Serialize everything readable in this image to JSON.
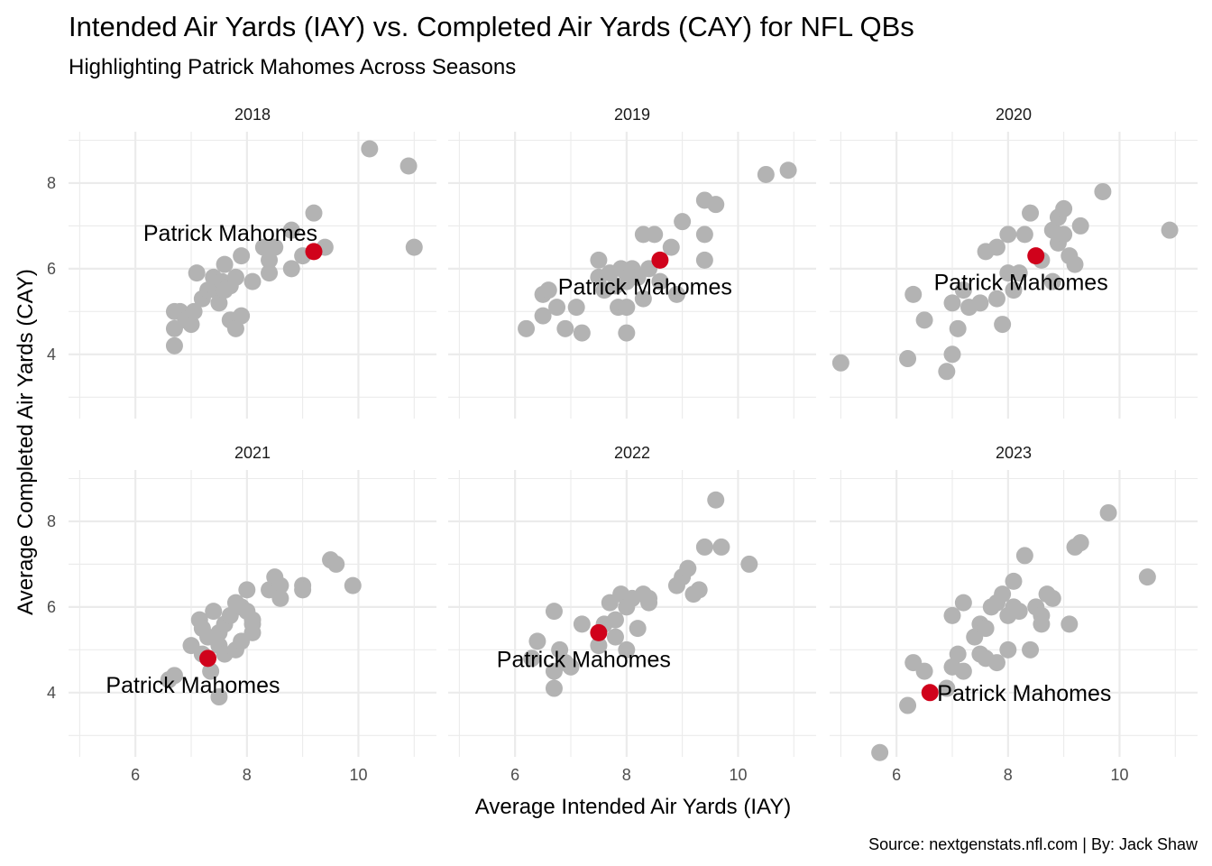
{
  "chart_data": {
    "type": "scatter",
    "title": "Intended Air Yards (IAY) vs. Completed Air Yards (CAY) for NFL QBs",
    "subtitle": "Highlighting Patrick Mahomes Across Seasons",
    "xlabel": "Average Intended Air Yards (IAY)",
    "ylabel": "Average Completed Air Yards (CAY)",
    "caption": "Source: nextgenstats.nfl.com | By: Jack Shaw",
    "xlim": [
      4.8,
      11.4
    ],
    "ylim": [
      2.5,
      9.2
    ],
    "x_ticks": [
      6,
      8,
      10
    ],
    "y_ticks": [
      4,
      6,
      8
    ],
    "grid": true,
    "facet_by": "season",
    "colors": {
      "others": "#b3b3b3",
      "highlight": "#d0021b"
    },
    "highlight_label": "Patrick Mahomes",
    "panels": [
      {
        "season": "2018",
        "highlight": {
          "x": 9.2,
          "y": 6.4
        },
        "label_position": "above-left",
        "points": [
          [
            6.7,
            5.0
          ],
          [
            6.7,
            4.6
          ],
          [
            6.7,
            4.2
          ],
          [
            6.8,
            5.0
          ],
          [
            6.9,
            4.8
          ],
          [
            7.0,
            4.7
          ],
          [
            7.05,
            5.0
          ],
          [
            7.1,
            5.9
          ],
          [
            7.2,
            5.3
          ],
          [
            7.3,
            5.5
          ],
          [
            7.4,
            5.8
          ],
          [
            7.45,
            5.5
          ],
          [
            7.5,
            5.2
          ],
          [
            7.55,
            5.7
          ],
          [
            7.6,
            6.1
          ],
          [
            7.6,
            5.5
          ],
          [
            7.7,
            4.8
          ],
          [
            7.7,
            5.6
          ],
          [
            7.8,
            4.6
          ],
          [
            7.8,
            5.8
          ],
          [
            7.9,
            4.9
          ],
          [
            7.9,
            6.3
          ],
          [
            8.1,
            5.7
          ],
          [
            8.3,
            6.5
          ],
          [
            8.4,
            5.9
          ],
          [
            8.4,
            6.2
          ],
          [
            8.5,
            6.5
          ],
          [
            8.8,
            6.0
          ],
          [
            8.8,
            6.9
          ],
          [
            9.0,
            6.3
          ],
          [
            9.2,
            7.3
          ],
          [
            9.4,
            6.5
          ],
          [
            10.2,
            8.8
          ],
          [
            10.9,
            8.4
          ],
          [
            11.0,
            6.5
          ]
        ]
      },
      {
        "season": "2019",
        "highlight": {
          "x": 8.6,
          "y": 6.2
        },
        "label_position": "below-left",
        "points": [
          [
            6.2,
            4.6
          ],
          [
            6.5,
            4.9
          ],
          [
            6.5,
            5.4
          ],
          [
            6.6,
            5.5
          ],
          [
            6.75,
            5.1
          ],
          [
            6.9,
            4.6
          ],
          [
            7.1,
            5.1
          ],
          [
            7.2,
            4.5
          ],
          [
            7.5,
            6.2
          ],
          [
            7.5,
            5.8
          ],
          [
            7.6,
            5.5
          ],
          [
            7.7,
            5.9
          ],
          [
            7.8,
            5.6
          ],
          [
            7.85,
            5.1
          ],
          [
            7.9,
            6.0
          ],
          [
            8.0,
            5.7
          ],
          [
            8.0,
            4.5
          ],
          [
            8.0,
            5.1
          ],
          [
            8.1,
            6.0
          ],
          [
            8.2,
            5.8
          ],
          [
            8.3,
            5.3
          ],
          [
            8.3,
            6.8
          ],
          [
            8.4,
            6.0
          ],
          [
            8.5,
            6.8
          ],
          [
            8.6,
            5.7
          ],
          [
            8.8,
            6.5
          ],
          [
            8.9,
            5.4
          ],
          [
            9.0,
            7.1
          ],
          [
            9.4,
            7.6
          ],
          [
            9.4,
            6.8
          ],
          [
            9.4,
            6.2
          ],
          [
            9.6,
            7.5
          ],
          [
            10.5,
            8.2
          ],
          [
            10.9,
            8.3
          ]
        ]
      },
      {
        "season": "2020",
        "highlight": {
          "x": 8.5,
          "y": 6.3
        },
        "label_position": "below-left",
        "points": [
          [
            5.0,
            3.8
          ],
          [
            6.2,
            3.9
          ],
          [
            6.3,
            5.4
          ],
          [
            6.5,
            4.8
          ],
          [
            6.9,
            3.6
          ],
          [
            7.0,
            4.0
          ],
          [
            7.0,
            5.2
          ],
          [
            7.1,
            4.6
          ],
          [
            7.2,
            5.5
          ],
          [
            7.3,
            5.1
          ],
          [
            7.5,
            5.2
          ],
          [
            7.6,
            6.4
          ],
          [
            7.8,
            6.5
          ],
          [
            7.8,
            5.3
          ],
          [
            7.9,
            4.7
          ],
          [
            8.0,
            5.9
          ],
          [
            8.0,
            6.8
          ],
          [
            8.1,
            5.5
          ],
          [
            8.2,
            5.9
          ],
          [
            8.3,
            6.8
          ],
          [
            8.4,
            7.3
          ],
          [
            8.6,
            6.2
          ],
          [
            8.8,
            6.9
          ],
          [
            8.8,
            5.7
          ],
          [
            8.9,
            7.2
          ],
          [
            8.9,
            6.6
          ],
          [
            9.0,
            7.4
          ],
          [
            9.0,
            6.8
          ],
          [
            9.1,
            6.3
          ],
          [
            9.2,
            6.1
          ],
          [
            9.3,
            7.0
          ],
          [
            9.7,
            7.8
          ],
          [
            10.9,
            6.9
          ]
        ]
      },
      {
        "season": "2021",
        "highlight": {
          "x": 7.3,
          "y": 4.8
        },
        "label_position": "below-left",
        "points": [
          [
            6.6,
            4.3
          ],
          [
            6.7,
            4.4
          ],
          [
            7.0,
            5.1
          ],
          [
            7.15,
            5.7
          ],
          [
            7.2,
            4.9
          ],
          [
            7.2,
            5.5
          ],
          [
            7.3,
            5.3
          ],
          [
            7.35,
            4.5
          ],
          [
            7.4,
            5.9
          ],
          [
            7.5,
            3.9
          ],
          [
            7.5,
            5.4
          ],
          [
            7.5,
            5.1
          ],
          [
            7.6,
            5.6
          ],
          [
            7.6,
            4.9
          ],
          [
            7.7,
            5.8
          ],
          [
            7.8,
            6.1
          ],
          [
            7.8,
            5.0
          ],
          [
            7.9,
            5.2
          ],
          [
            7.9,
            6.0
          ],
          [
            8.0,
            5.9
          ],
          [
            8.0,
            6.4
          ],
          [
            8.1,
            5.6
          ],
          [
            8.1,
            5.4
          ],
          [
            8.1,
            5.7
          ],
          [
            8.4,
            6.4
          ],
          [
            8.5,
            6.7
          ],
          [
            8.6,
            6.5
          ],
          [
            8.6,
            6.2
          ],
          [
            9.0,
            6.5
          ],
          [
            9.0,
            6.4
          ],
          [
            9.5,
            7.1
          ],
          [
            9.6,
            7.0
          ],
          [
            9.9,
            6.5
          ]
        ]
      },
      {
        "season": "2022",
        "highlight": {
          "x": 7.5,
          "y": 5.4
        },
        "label_position": "below-left",
        "points": [
          [
            6.3,
            4.8
          ],
          [
            6.4,
            5.2
          ],
          [
            6.7,
            4.5
          ],
          [
            6.7,
            4.1
          ],
          [
            6.7,
            5.9
          ],
          [
            6.8,
            5.0
          ],
          [
            6.9,
            4.7
          ],
          [
            7.0,
            4.6
          ],
          [
            7.2,
            5.6
          ],
          [
            7.5,
            5.1
          ],
          [
            7.6,
            5.6
          ],
          [
            7.7,
            6.1
          ],
          [
            7.8,
            5.3
          ],
          [
            7.8,
            5.7
          ],
          [
            7.9,
            6.3
          ],
          [
            8.0,
            5.0
          ],
          [
            8.0,
            6.0
          ],
          [
            8.1,
            6.2
          ],
          [
            8.2,
            5.5
          ],
          [
            8.3,
            6.3
          ],
          [
            8.4,
            6.1
          ],
          [
            8.4,
            6.2
          ],
          [
            8.9,
            6.5
          ],
          [
            9.0,
            6.7
          ],
          [
            9.1,
            6.9
          ],
          [
            9.2,
            6.3
          ],
          [
            9.3,
            6.4
          ],
          [
            9.4,
            7.4
          ],
          [
            9.6,
            8.5
          ],
          [
            9.7,
            7.4
          ],
          [
            10.2,
            7.0
          ]
        ]
      },
      {
        "season": "2023",
        "highlight": {
          "x": 6.6,
          "y": 4.0
        },
        "label_position": "right",
        "points": [
          [
            5.7,
            2.6
          ],
          [
            6.2,
            3.7
          ],
          [
            6.3,
            4.7
          ],
          [
            6.5,
            4.5
          ],
          [
            6.9,
            4.1
          ],
          [
            7.0,
            5.8
          ],
          [
            7.0,
            4.6
          ],
          [
            7.1,
            4.9
          ],
          [
            7.2,
            6.1
          ],
          [
            7.2,
            4.5
          ],
          [
            7.4,
            5.3
          ],
          [
            7.5,
            5.6
          ],
          [
            7.5,
            4.9
          ],
          [
            7.6,
            4.8
          ],
          [
            7.6,
            5.5
          ],
          [
            7.7,
            6.0
          ],
          [
            7.8,
            4.7
          ],
          [
            7.8,
            6.1
          ],
          [
            7.9,
            6.3
          ],
          [
            8.0,
            5.8
          ],
          [
            8.0,
            5.0
          ],
          [
            8.1,
            6.6
          ],
          [
            8.1,
            6.0
          ],
          [
            8.2,
            5.9
          ],
          [
            8.3,
            7.2
          ],
          [
            8.4,
            5.0
          ],
          [
            8.5,
            6.0
          ],
          [
            8.6,
            5.8
          ],
          [
            8.6,
            5.6
          ],
          [
            8.7,
            6.3
          ],
          [
            8.8,
            6.2
          ],
          [
            9.1,
            5.6
          ],
          [
            9.2,
            7.4
          ],
          [
            9.3,
            7.5
          ],
          [
            9.8,
            8.2
          ],
          [
            10.5,
            6.7
          ]
        ]
      }
    ]
  }
}
